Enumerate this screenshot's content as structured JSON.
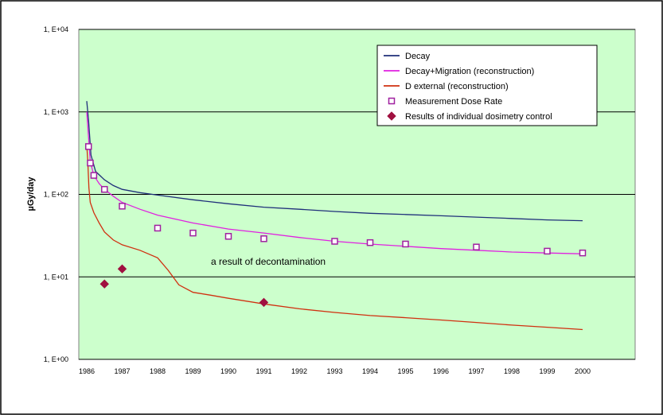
{
  "colors": {
    "plot_bg": "#ccffcc",
    "decay": "#1f2f7a",
    "migration": "#e020e0",
    "external": "#d03010",
    "measurement": "#a020a0",
    "dosimetry": "#a01040",
    "grid": "#000000"
  },
  "chart_data": {
    "type": "line",
    "ylabel": "µGy/day",
    "yscale": "log",
    "ylim": [
      1,
      10000
    ],
    "ytick_labels": [
      "1, E+04",
      "1, E+03",
      "1, E+02",
      "1, E+01",
      "1, E+00"
    ],
    "xlim": [
      1986,
      2000
    ],
    "xtick_labels": [
      "1986",
      "1987",
      "1988",
      "1989",
      "1990",
      "1991",
      "1992",
      "1993",
      "1994",
      "1995",
      "1996",
      "1997",
      "1998",
      "1999",
      "2000"
    ],
    "grid": "horizontal major lines",
    "legend_position": "top-right",
    "annotation": "a result of decontamination",
    "series": [
      {
        "name": "Decay",
        "style": "line",
        "x": [
          1986.0,
          1986.05,
          1986.12,
          1986.25,
          1986.5,
          1986.75,
          1987.0,
          1987.5,
          1988.0,
          1989.0,
          1990.0,
          1991.0,
          1992.0,
          1993.0,
          1994.0,
          1995.0,
          1996.0,
          1997.0,
          1998.0,
          1999.0,
          2000.0
        ],
        "y": [
          1350,
          800,
          300,
          190,
          150,
          128,
          115,
          105,
          98,
          86,
          77,
          70,
          66,
          62,
          59,
          57,
          55,
          53,
          51,
          49,
          48
        ]
      },
      {
        "name": "Decay+Migration (reconstruction)",
        "style": "line",
        "x": [
          1986.0,
          1986.05,
          1986.1,
          1986.2,
          1986.35,
          1986.5,
          1986.75,
          1987.0,
          1987.5,
          1988.0,
          1989.0,
          1990.0,
          1991.0,
          1992.0,
          1993.0,
          1994.0,
          1995.0,
          1996.0,
          1997.0,
          1998.0,
          1999.0,
          2000.0
        ],
        "y": [
          1000,
          500,
          250,
          170,
          135,
          115,
          95,
          80,
          66,
          56,
          45,
          38,
          34,
          30,
          27,
          25,
          23.5,
          22,
          21,
          20,
          19.5,
          19
        ]
      },
      {
        "name": "D external (reconstruction)",
        "style": "line",
        "x": [
          1986.0,
          1986.03,
          1986.06,
          1986.1,
          1986.2,
          1986.35,
          1986.5,
          1986.75,
          1987.0,
          1987.5,
          1988.0,
          1988.3,
          1988.6,
          1989.0,
          1989.5,
          1990.0,
          1991.0,
          1992.0,
          1993.0,
          1994.0,
          1995.0,
          1996.0,
          1997.0,
          1998.0,
          1999.0,
          2000.0
        ],
        "y": [
          400,
          250,
          120,
          80,
          60,
          45,
          35,
          28,
          24.5,
          21,
          17,
          12,
          8,
          6.5,
          6.0,
          5.5,
          4.7,
          4.1,
          3.7,
          3.4,
          3.2,
          3.0,
          2.8,
          2.6,
          2.45,
          2.3
        ]
      },
      {
        "name": "Measurement Dose Rate",
        "style": "marker-square",
        "x": [
          1986.05,
          1986.1,
          1986.2,
          1986.5,
          1987.0,
          1988.0,
          1989.0,
          1990.0,
          1991.0,
          1993.0,
          1994.0,
          1995.0,
          1997.0,
          1999.0,
          2000.0
        ],
        "y": [
          380,
          240,
          170,
          115,
          72,
          39,
          34,
          31,
          29,
          27,
          26,
          25,
          23,
          20.5,
          19.5
        ]
      },
      {
        "name": "Results of individual dosimetry control",
        "style": "marker-diamond",
        "x": [
          1986.5,
          1987.0,
          1991.0
        ],
        "y": [
          8.2,
          12.5,
          4.9
        ]
      }
    ]
  }
}
